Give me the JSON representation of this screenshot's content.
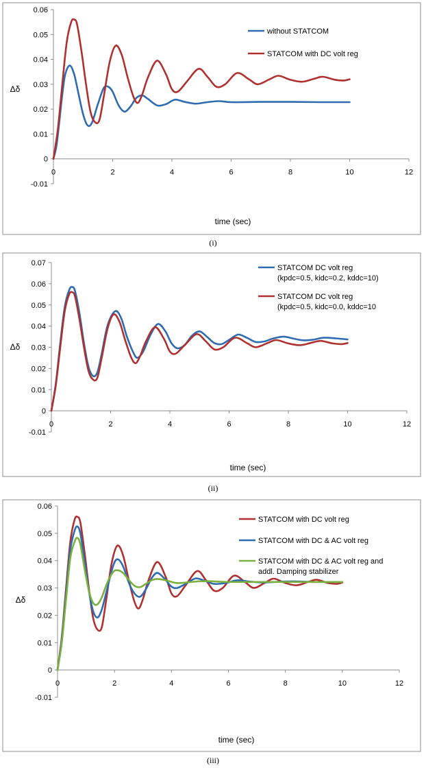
{
  "chart_data": [
    {
      "type": "line",
      "caption": "(i)",
      "xlabel": "time (sec)",
      "ylabel": "Δδ",
      "xlim": [
        0,
        12
      ],
      "ylim": [
        -0.01,
        0.06
      ],
      "xticks": [
        "0",
        "2",
        "4",
        "6",
        "8",
        "10",
        "12"
      ],
      "yticks": [
        "-0.01",
        "0",
        "0.01",
        "0.02",
        "0.03",
        "0.04",
        "0.05",
        "0.06"
      ],
      "legend_position": "top-right",
      "series": [
        {
          "name": "without STATCOM",
          "color": "#2e6bb0",
          "x": [
            0,
            0.1,
            0.2,
            0.3,
            0.4,
            0.55,
            0.7,
            0.85,
            1.0,
            1.15,
            1.3,
            1.5,
            1.7,
            1.85,
            2.0,
            2.2,
            2.4,
            2.6,
            2.8,
            3.0,
            3.2,
            3.5,
            3.8,
            4.1,
            4.4,
            4.8,
            5.2,
            5.6,
            6.0,
            7.0,
            8.0,
            9.0,
            10.0
          ],
          "y": [
            0,
            0.005,
            0.015,
            0.026,
            0.034,
            0.0375,
            0.034,
            0.026,
            0.018,
            0.0135,
            0.0145,
            0.022,
            0.0285,
            0.029,
            0.027,
            0.0215,
            0.019,
            0.021,
            0.0245,
            0.0255,
            0.024,
            0.0215,
            0.022,
            0.0238,
            0.023,
            0.0222,
            0.0228,
            0.0232,
            0.0228,
            0.0229,
            0.0229,
            0.0228,
            0.0228
          ]
        },
        {
          "name": "STATCOM with DC volt reg",
          "color": "#b03030",
          "x": [
            0,
            0.15,
            0.3,
            0.45,
            0.6,
            0.7,
            0.8,
            0.95,
            1.1,
            1.25,
            1.4,
            1.55,
            1.7,
            1.9,
            2.1,
            2.3,
            2.5,
            2.7,
            2.85,
            3.0,
            3.2,
            3.5,
            3.8,
            4.0,
            4.2,
            4.5,
            4.9,
            5.2,
            5.5,
            5.8,
            6.2,
            6.6,
            6.9,
            7.3,
            7.6,
            8.0,
            8.4,
            8.8,
            9.1,
            9.5,
            9.8,
            10.0
          ],
          "y": [
            0,
            0.012,
            0.03,
            0.047,
            0.055,
            0.056,
            0.054,
            0.043,
            0.03,
            0.019,
            0.0148,
            0.0155,
            0.025,
            0.039,
            0.0455,
            0.042,
            0.033,
            0.025,
            0.0225,
            0.026,
            0.033,
            0.0395,
            0.034,
            0.028,
            0.027,
            0.031,
            0.0362,
            0.033,
            0.029,
            0.03,
            0.0345,
            0.032,
            0.03,
            0.032,
            0.0334,
            0.0318,
            0.031,
            0.0322,
            0.033,
            0.0318,
            0.0315,
            0.032
          ]
        }
      ]
    },
    {
      "type": "line",
      "caption": "(ii)",
      "xlabel": "time (sec)",
      "ylabel": "Δδ",
      "xlim": [
        0,
        12
      ],
      "ylim": [
        -0.01,
        0.07
      ],
      "xticks": [
        "0",
        "2",
        "4",
        "6",
        "8",
        "10",
        "12"
      ],
      "yticks": [
        "-0.01",
        "0",
        "0.01",
        "0.02",
        "0.03",
        "0.04",
        "0.05",
        "0.06",
        "0.07"
      ],
      "legend_position": "top-right",
      "series": [
        {
          "name": "STATCOM DC volt reg",
          "params": "(kpdc=0.5, kidc=0.2, kddc=10)",
          "color": "#2e6bb0",
          "x": [
            0,
            0.15,
            0.3,
            0.45,
            0.6,
            0.7,
            0.8,
            0.95,
            1.1,
            1.25,
            1.4,
            1.55,
            1.7,
            1.9,
            2.15,
            2.35,
            2.55,
            2.75,
            2.9,
            3.1,
            3.35,
            3.6,
            3.85,
            4.05,
            4.25,
            4.5,
            4.75,
            5.0,
            5.25,
            5.5,
            5.75,
            6.0,
            6.3,
            6.6,
            6.9,
            7.2,
            7.5,
            7.85,
            8.2,
            8.5,
            8.8,
            9.2,
            9.6,
            10.0
          ],
          "y": [
            0,
            0.013,
            0.032,
            0.049,
            0.057,
            0.0585,
            0.0565,
            0.046,
            0.032,
            0.021,
            0.0165,
            0.018,
            0.027,
            0.0405,
            0.047,
            0.044,
            0.035,
            0.028,
            0.025,
            0.028,
            0.036,
            0.041,
            0.0375,
            0.032,
            0.0295,
            0.031,
            0.0355,
            0.0375,
            0.035,
            0.032,
            0.0315,
            0.0335,
            0.036,
            0.0345,
            0.0325,
            0.0328,
            0.0342,
            0.035,
            0.034,
            0.0333,
            0.0335,
            0.0345,
            0.0342,
            0.0337
          ]
        },
        {
          "name": "STATCOM DC volt reg",
          "params": "(kpdc=0.5, kidc=0.0, kddc=10",
          "color": "#b03030",
          "x": [
            0,
            0.15,
            0.3,
            0.45,
            0.6,
            0.7,
            0.8,
            0.95,
            1.1,
            1.25,
            1.4,
            1.55,
            1.7,
            1.9,
            2.1,
            2.3,
            2.5,
            2.7,
            2.85,
            3.0,
            3.2,
            3.5,
            3.8,
            4.0,
            4.2,
            4.5,
            4.9,
            5.2,
            5.5,
            5.8,
            6.2,
            6.6,
            6.9,
            7.3,
            7.6,
            8.0,
            8.4,
            8.8,
            9.1,
            9.5,
            9.8,
            10.0
          ],
          "y": [
            0,
            0.012,
            0.03,
            0.047,
            0.055,
            0.056,
            0.054,
            0.043,
            0.03,
            0.019,
            0.0148,
            0.0155,
            0.025,
            0.039,
            0.0455,
            0.042,
            0.033,
            0.025,
            0.0225,
            0.026,
            0.033,
            0.0395,
            0.034,
            0.028,
            0.027,
            0.031,
            0.0362,
            0.033,
            0.029,
            0.03,
            0.0345,
            0.032,
            0.03,
            0.032,
            0.0334,
            0.0318,
            0.031,
            0.0322,
            0.033,
            0.0318,
            0.0315,
            0.032
          ]
        }
      ]
    },
    {
      "type": "line",
      "caption": "(iii)",
      "xlabel": "time (sec)",
      "ylabel": "Δδ",
      "xlim": [
        0,
        12
      ],
      "ylim": [
        -0.01,
        0.06
      ],
      "xticks": [
        "0",
        "2",
        "4",
        "6",
        "8",
        "10",
        "12"
      ],
      "yticks": [
        "-0.01",
        "0",
        "0.01",
        "0.02",
        "0.03",
        "0.04",
        "0.05",
        "0.06"
      ],
      "legend_position": "top-right",
      "series": [
        {
          "name": "STATCOM with DC volt reg",
          "color": "#b03030",
          "x": [
            0,
            0.15,
            0.3,
            0.45,
            0.6,
            0.7,
            0.8,
            0.95,
            1.1,
            1.25,
            1.4,
            1.55,
            1.7,
            1.9,
            2.1,
            2.3,
            2.5,
            2.7,
            2.85,
            3.0,
            3.2,
            3.5,
            3.8,
            4.0,
            4.2,
            4.5,
            4.9,
            5.2,
            5.5,
            5.8,
            6.2,
            6.6,
            6.9,
            7.3,
            7.6,
            8.0,
            8.4,
            8.8,
            9.1,
            9.5,
            9.8,
            10.0
          ],
          "y": [
            0,
            0.012,
            0.03,
            0.047,
            0.055,
            0.056,
            0.054,
            0.043,
            0.03,
            0.019,
            0.0148,
            0.0155,
            0.025,
            0.039,
            0.0455,
            0.042,
            0.033,
            0.025,
            0.0225,
            0.026,
            0.033,
            0.0395,
            0.034,
            0.028,
            0.027,
            0.031,
            0.0362,
            0.033,
            0.029,
            0.03,
            0.0345,
            0.032,
            0.03,
            0.032,
            0.0334,
            0.0318,
            0.031,
            0.0322,
            0.033,
            0.0318,
            0.0315,
            0.032
          ]
        },
        {
          "name": "STATCOM with DC & AC volt reg",
          "color": "#2e6bb0",
          "x": [
            0,
            0.15,
            0.3,
            0.45,
            0.6,
            0.7,
            0.8,
            0.95,
            1.1,
            1.25,
            1.4,
            1.55,
            1.75,
            1.95,
            2.1,
            2.3,
            2.5,
            2.7,
            2.9,
            3.1,
            3.3,
            3.5,
            3.75,
            4.0,
            4.2,
            4.5,
            4.85,
            5.2,
            5.5,
            5.9,
            6.3,
            6.7,
            7.2,
            7.8,
            8.4,
            9.0,
            9.5,
            10.0
          ],
          "y": [
            0,
            0.011,
            0.028,
            0.044,
            0.051,
            0.0525,
            0.05,
            0.04,
            0.029,
            0.0215,
            0.0192,
            0.022,
            0.03,
            0.038,
            0.0405,
            0.038,
            0.032,
            0.028,
            0.0268,
            0.0295,
            0.0335,
            0.0355,
            0.0335,
            0.0305,
            0.03,
            0.0315,
            0.0335,
            0.0325,
            0.0315,
            0.0318,
            0.0328,
            0.0324,
            0.032,
            0.0323,
            0.0324,
            0.0322,
            0.0322,
            0.0322
          ]
        },
        {
          "name": "STATCOM with DC & AC volt reg and",
          "params": "addl. Damping stabilizer",
          "color": "#7ab03c",
          "x": [
            0,
            0.15,
            0.3,
            0.45,
            0.6,
            0.7,
            0.8,
            0.95,
            1.1,
            1.25,
            1.4,
            1.55,
            1.75,
            1.95,
            2.1,
            2.3,
            2.5,
            2.7,
            2.9,
            3.1,
            3.3,
            3.5,
            3.8,
            4.2,
            4.7,
            5.2,
            6.0,
            7.0,
            8.0,
            9.0,
            10.0
          ],
          "y": [
            0,
            0.01,
            0.026,
            0.041,
            0.047,
            0.0483,
            0.046,
            0.037,
            0.029,
            0.0245,
            0.024,
            0.0265,
            0.032,
            0.0358,
            0.0365,
            0.0355,
            0.033,
            0.0308,
            0.0303,
            0.0315,
            0.0328,
            0.0333,
            0.0328,
            0.0318,
            0.0322,
            0.0325,
            0.0322,
            0.0322,
            0.0322,
            0.0322,
            0.0322
          ]
        }
      ]
    }
  ]
}
